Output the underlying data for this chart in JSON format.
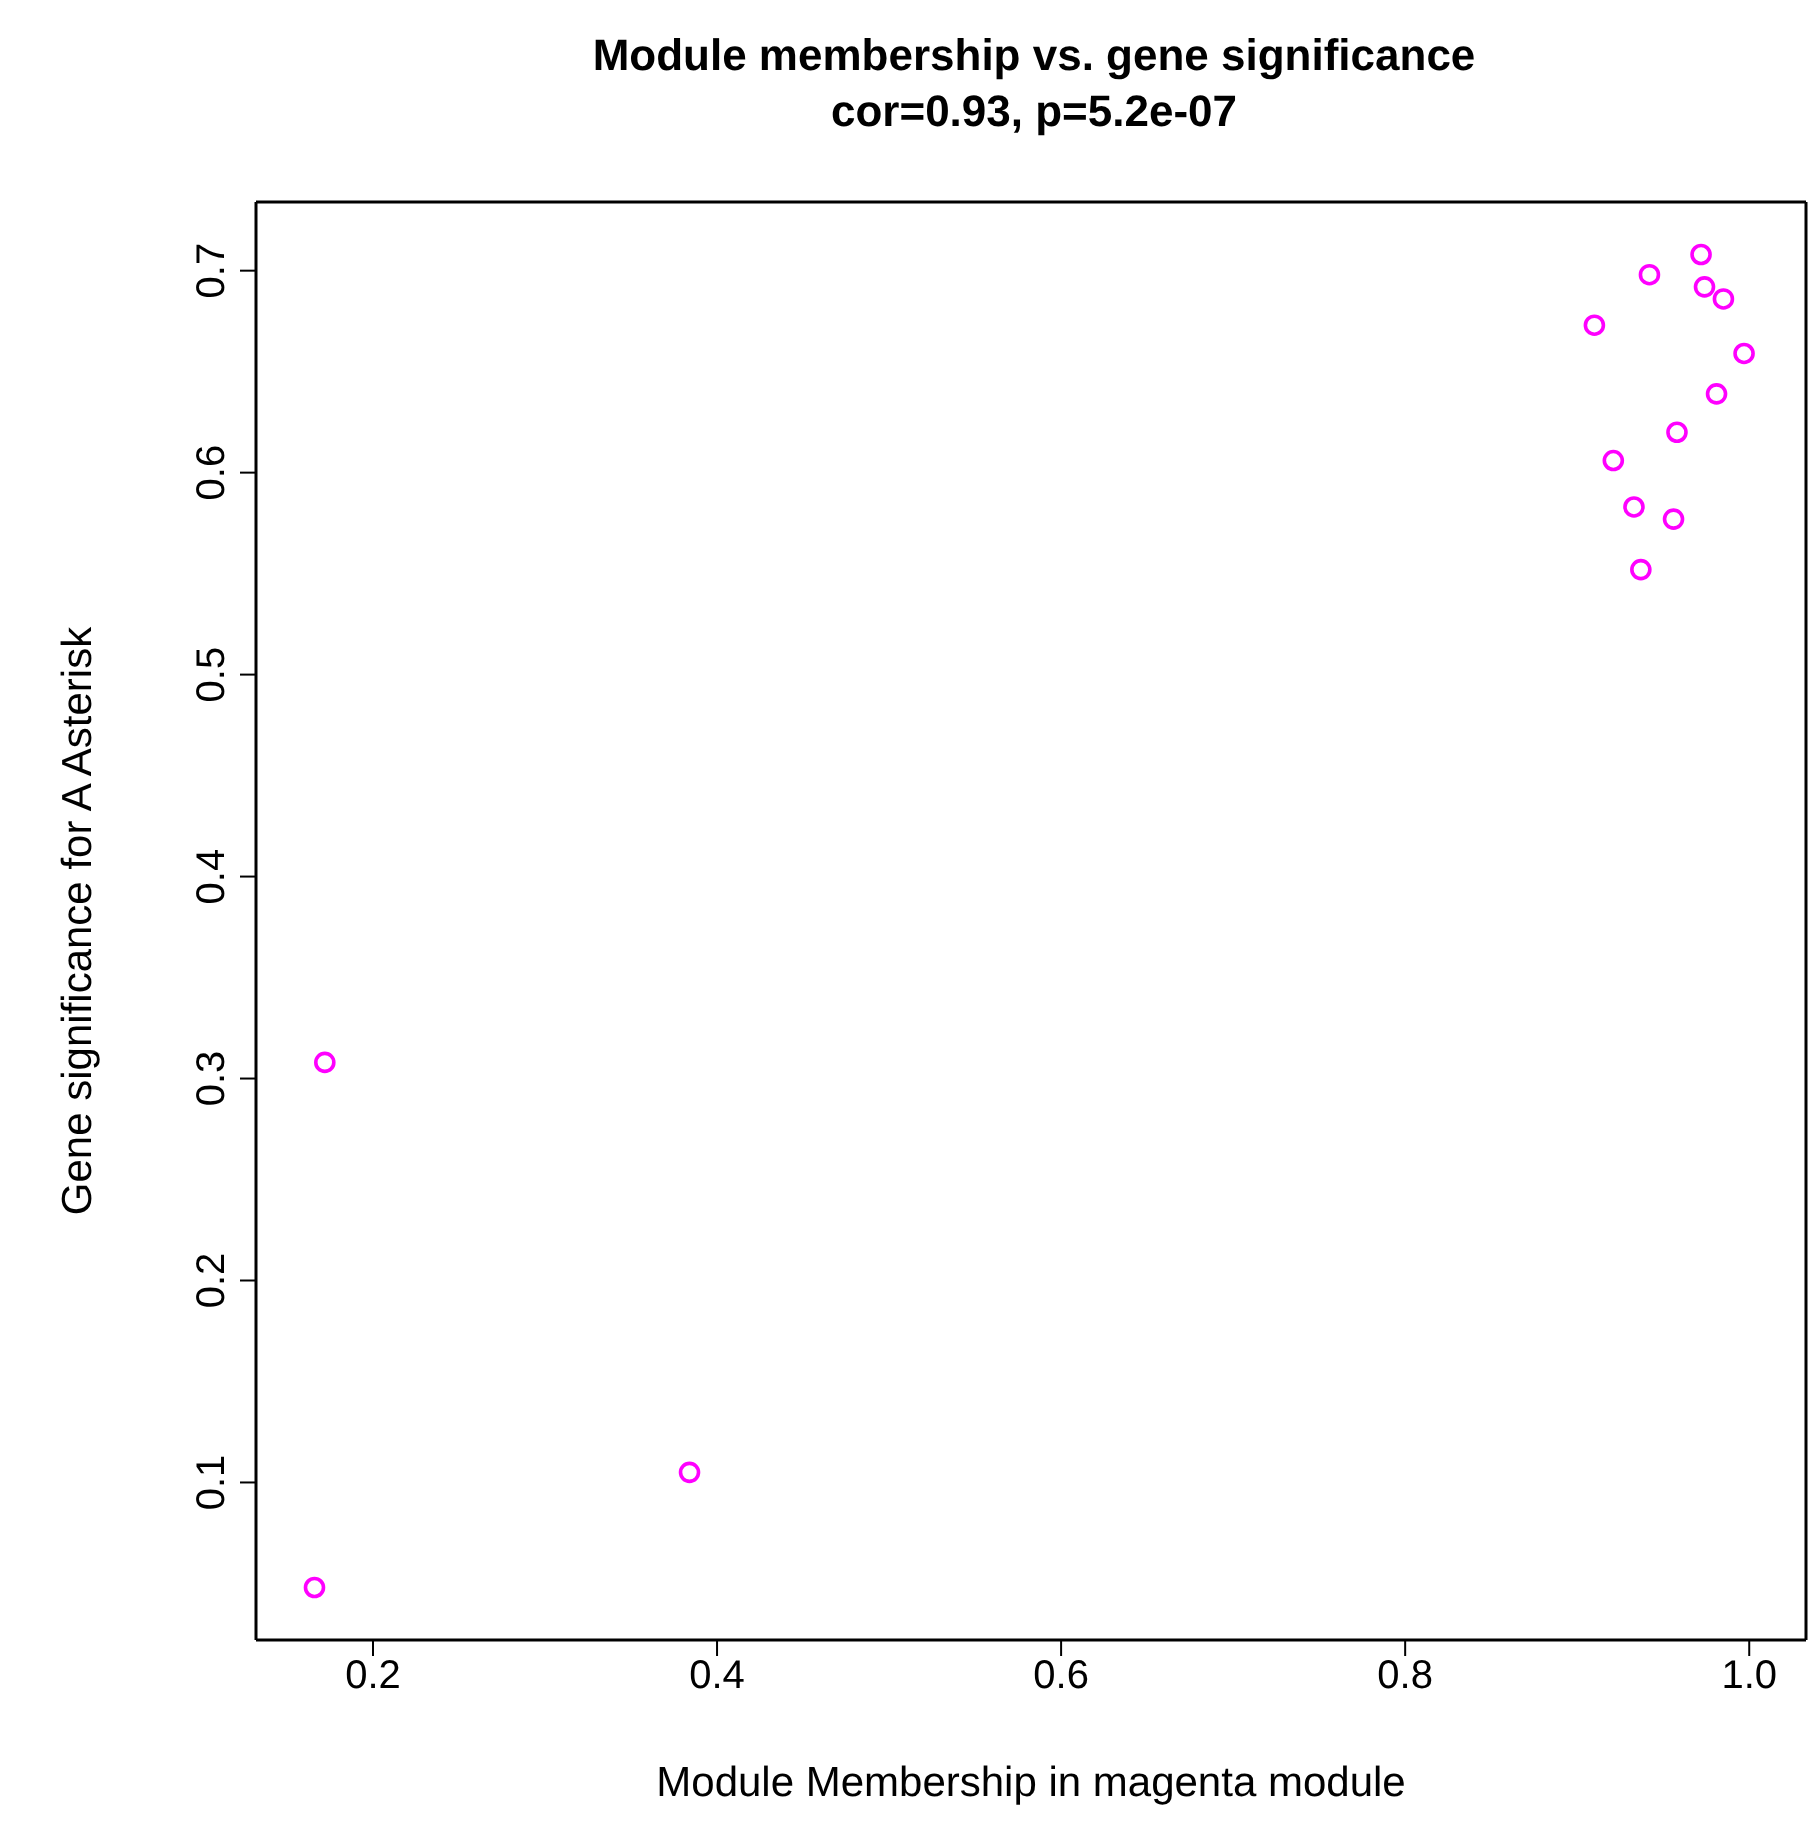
{
  "chart_data": {
    "type": "scatter",
    "title": "Module membership vs. gene significance",
    "subtitle": "cor=0.93, p=5.2e-07",
    "xlabel": "Module Membership in magenta module",
    "ylabel": "Gene significance for A Asterisk",
    "x": [
      0.972,
      0.942,
      0.974,
      0.985,
      0.91,
      0.997,
      0.981,
      0.958,
      0.921,
      0.933,
      0.956,
      0.937,
      0.172,
      0.384,
      0.166
    ],
    "values": [
      0.708,
      0.698,
      0.692,
      0.686,
      0.673,
      0.659,
      0.639,
      0.62,
      0.606,
      0.583,
      0.577,
      0.552,
      0.308,
      0.105,
      0.048
    ],
    "color": "#ff00ff",
    "marker": "circle",
    "xlim": [
      0.132,
      1.033
    ],
    "xticks": [
      0.2,
      0.4,
      0.6,
      0.8,
      {
        "value": 1,
        "label": "1.0"
      }
    ],
    "ylim": [
      0.022,
      0.734
    ],
    "yticks": [
      0.1,
      0.2,
      0.3,
      0.4,
      0.5,
      0.6,
      0.7
    ]
  }
}
